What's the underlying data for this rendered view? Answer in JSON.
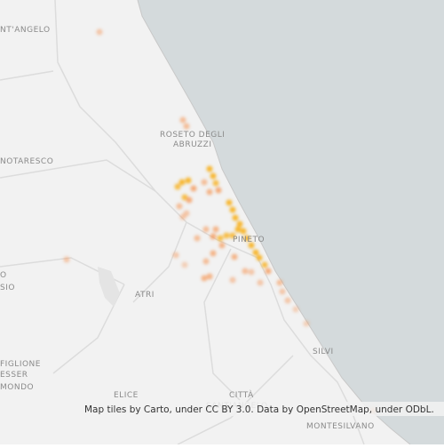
{
  "map": {
    "labels": [
      "NT'ANGELO",
      "ROSETO DEGLI",
      "ABRUZZI",
      "NOTARESCO",
      "PINETO",
      "ATRI",
      "O",
      "SIO",
      "SILVI",
      "FIGLIONE",
      "ESSER",
      "MONDO",
      "ELICE",
      "CITTÀ",
      "SANT'ANGELO",
      "MONTESILVANO"
    ],
    "attribution": "Map tiles by Carto, under CC BY 3.0. Data by OpenStreetMap, under ODbL."
  }
}
